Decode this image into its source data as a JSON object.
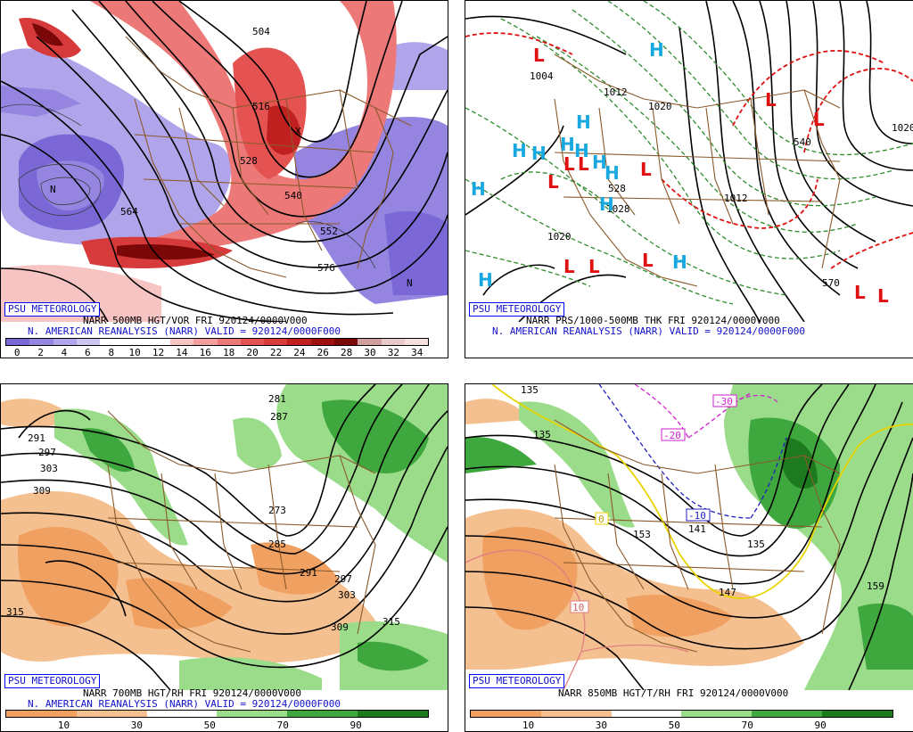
{
  "panels": {
    "vor": {
      "badge": "PSU METEOROLOGY",
      "line1": "NARR 500MB HGT/VOR FRI 920124/0000V000",
      "line2": "N. AMERICAN REANALYSIS (NARR) VALID = 920124/0000F000",
      "ticks": [
        "0",
        "2",
        "4",
        "6",
        "8",
        "10",
        "12",
        "14",
        "16",
        "18",
        "20",
        "22",
        "24",
        "26",
        "28",
        "30",
        "32",
        "34"
      ],
      "colors": [
        "#7b68d6",
        "#9585e0",
        "#b0a4ea",
        "#cdc4f2",
        "#ffffff",
        "#ffffff",
        "#ffffff",
        "#f7c4c4",
        "#f29e9e",
        "#ec7878",
        "#e45252",
        "#d63a3a",
        "#c02020",
        "#a01010",
        "#7a0808",
        "#d0a0a0",
        "#e8c8c8",
        "#f4dede"
      ],
      "labels": [
        "504",
        "516",
        "528",
        "540",
        "552",
        "564",
        "576",
        "N",
        "X"
      ]
    },
    "thk": {
      "badge": "PSU METEOROLOGY",
      "line1": "NARR PRS/1000-500MB THK FRI 920124/0000V000",
      "line2": "N. AMERICAN REANALYSIS (NARR) VALID = 920124/0000F000",
      "labels": [
        "1004",
        "1012",
        "1020",
        "1028",
        "1020",
        "1012",
        "1020",
        "528",
        "540",
        "570"
      ],
      "high": "H",
      "low": "L"
    },
    "rh700": {
      "badge": "PSU METEOROLOGY",
      "line1": "NARR 700MB HGT/RH FRI 920124/0000V000",
      "line2": "N. AMERICAN REANALYSIS (NARR) VALID = 920124/0000F000",
      "ticks": [
        "10",
        "30",
        "50",
        "70",
        "90"
      ],
      "colors": [
        "#f0a060",
        "#f5c090",
        "#ffffff",
        "#9adc8a",
        "#3ea83e",
        "#1e7a1e"
      ],
      "labels": [
        "291",
        "297",
        "303",
        "309",
        "315",
        "273",
        "285",
        "291",
        "297",
        "303",
        "309",
        "315",
        "281",
        "287"
      ]
    },
    "rh850": {
      "badge": "PSU METEOROLOGY",
      "line1": "NARR 850MB HGT/T/RH FRI 920124/0000V000",
      "ticks": [
        "10",
        "30",
        "50",
        "70",
        "90"
      ],
      "colors": [
        "#f0a060",
        "#f5c090",
        "#ffffff",
        "#9adc8a",
        "#3ea83e",
        "#1e7a1e"
      ],
      "labels": [
        "135",
        "135",
        "141",
        "135",
        "147",
        "153",
        "159",
        "-10",
        "-20",
        "-30",
        "0",
        "10"
      ]
    }
  }
}
